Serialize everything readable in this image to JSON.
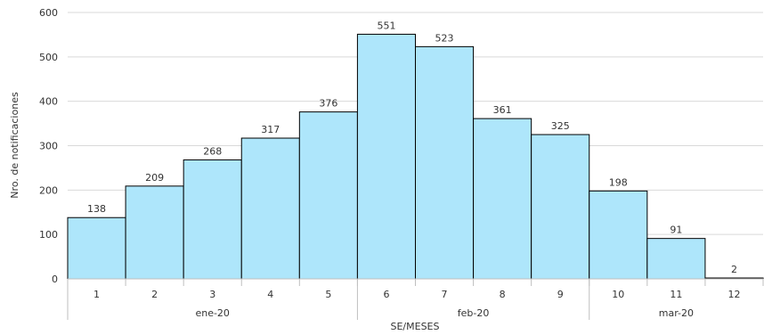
{
  "chart_data": {
    "type": "bar",
    "categories": [
      "1",
      "2",
      "3",
      "4",
      "5",
      "6",
      "7",
      "8",
      "9",
      "10",
      "11",
      "12"
    ],
    "values": [
      138,
      209,
      268,
      317,
      376,
      551,
      523,
      361,
      325,
      198,
      91,
      2
    ],
    "groups": [
      {
        "label": "ene-20",
        "categories": [
          "1",
          "2",
          "3",
          "4",
          "5"
        ]
      },
      {
        "label": "feb-20",
        "categories": [
          "6",
          "7",
          "8",
          "9"
        ]
      },
      {
        "label": "mar-20",
        "categories": [
          "10",
          "11",
          "12"
        ]
      }
    ],
    "xlabel": "SE/MESES",
    "ylabel": "Nro. de notificaciones",
    "ylim": [
      0,
      600
    ],
    "yticks": [
      0,
      100,
      200,
      300,
      400,
      500,
      600
    ],
    "grid": true,
    "data_labels": true,
    "bar_color": "#aee6fb",
    "bar_edge_color": "#000000",
    "grid_color": "#d9d9d9",
    "axis_color": "#bfbfbf"
  }
}
